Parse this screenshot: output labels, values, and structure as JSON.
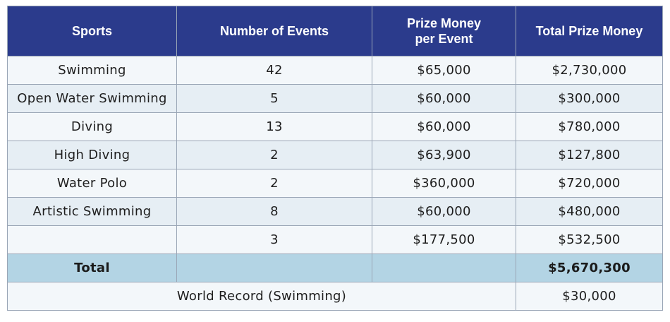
{
  "table": {
    "headers": {
      "sports": "Sports",
      "events": "Number of Events",
      "prize_line1": "Prize Money",
      "prize_line2": "per Event",
      "total": "Total Prize Money"
    },
    "rows": [
      {
        "sport": "Swimming",
        "events": "42",
        "prize": "$65,000",
        "total": "$2,730,000"
      },
      {
        "sport": "Open Water Swimming",
        "events": "5",
        "prize": "$60,000",
        "total": "$300,000"
      },
      {
        "sport": "Diving",
        "events": "13",
        "prize": "$60,000",
        "total": "$780,000"
      },
      {
        "sport": "High Diving",
        "events": "2",
        "prize": "$63,900",
        "total": "$127,800"
      },
      {
        "sport": "Water Polo",
        "events": "2",
        "prize": "$360,000",
        "total": "$720,000"
      },
      {
        "sport": "Artistic Swimming",
        "events": "8",
        "prize": "$60,000",
        "total": "$480,000"
      },
      {
        "sport": "",
        "events": "3",
        "prize": "$177,500",
        "total": "$532,500"
      }
    ],
    "total_row": {
      "label": "Total",
      "value": "$5,670,300"
    },
    "world_record": {
      "label": "World Record (Swimming)",
      "value": "$30,000"
    }
  },
  "colors": {
    "header_bg": "#2b3b8c",
    "row_light": "#f3f7fa",
    "row_alt": "#e6eef4",
    "total_bg": "#b3d4e4"
  }
}
